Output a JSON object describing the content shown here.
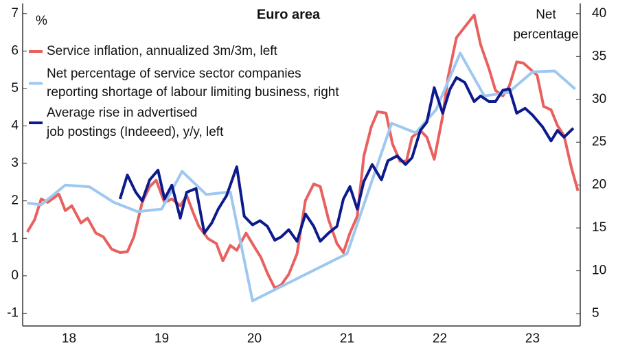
{
  "chart_data": {
    "type": "line",
    "title": "Euro area",
    "ylabel": "%",
    "y2label": [
      "Net",
      "percentage"
    ],
    "xlim": [
      18,
      24
    ],
    "xticks": [
      {
        "value": 18.5,
        "label": "18"
      },
      {
        "value": 19.5,
        "label": "19"
      },
      {
        "value": 20.5,
        "label": "20"
      },
      {
        "value": 21.5,
        "label": "21"
      },
      {
        "value": 22.5,
        "label": "22"
      },
      {
        "value": 23.5,
        "label": "23"
      }
    ],
    "ylim": [
      -1.34,
      7.27
    ],
    "yticks": [
      -1,
      0,
      1,
      2,
      3,
      4,
      5,
      6,
      7
    ],
    "y2lim": [
      3.56,
      41.19
    ],
    "y2ticks": [
      5,
      10,
      15,
      20,
      25,
      30,
      35,
      40
    ],
    "grid": false,
    "series": [
      {
        "name": "Service inflation, annualized 3m/3m, left",
        "color": "#e8615f",
        "axis": "y",
        "x": [
          18.05,
          18.13,
          18.2,
          18.27,
          18.39,
          18.46,
          18.53,
          18.63,
          18.7,
          18.79,
          18.87,
          18.96,
          19.05,
          19.13,
          19.2,
          19.29,
          19.37,
          19.44,
          19.53,
          19.61,
          19.7,
          19.77,
          19.84,
          19.9,
          20.0,
          20.09,
          20.16,
          20.24,
          20.31,
          20.41,
          20.5,
          20.57,
          20.64,
          20.72,
          20.79,
          20.87,
          20.96,
          21.05,
          21.14,
          21.21,
          21.3,
          21.39,
          21.46,
          21.53,
          21.61,
          21.68,
          21.76,
          21.83,
          21.92,
          21.99,
          22.07,
          22.14,
          22.2,
          22.29,
          22.36,
          22.44,
          22.53,
          22.59,
          22.68,
          22.87,
          22.94,
          23.03,
          23.1,
          23.18,
          23.25,
          23.33,
          23.4,
          23.47,
          23.55,
          23.62,
          23.7,
          23.77,
          23.84,
          23.92,
          23.99
        ],
        "values": [
          1.17,
          1.5,
          2.05,
          1.96,
          2.18,
          1.74,
          1.87,
          1.41,
          1.54,
          1.14,
          1.04,
          0.71,
          0.62,
          0.64,
          1.04,
          1.96,
          2.38,
          2.55,
          1.96,
          2.05,
          1.87,
          2.14,
          1.68,
          1.32,
          0.99,
          0.86,
          0.4,
          0.81,
          0.68,
          1.14,
          0.77,
          0.49,
          0.07,
          -0.33,
          -0.24,
          0.04,
          0.59,
          2.01,
          2.45,
          2.38,
          1.5,
          0.86,
          0.62,
          1.14,
          1.59,
          3.19,
          3.97,
          4.38,
          4.34,
          3.52,
          3.06,
          3.06,
          3.7,
          3.88,
          3.7,
          3.11,
          4.25,
          5.31,
          6.36,
          6.96,
          6.17,
          5.53,
          4.95,
          4.8,
          5.07,
          5.71,
          5.68,
          5.53,
          5.35,
          4.52,
          4.43,
          4.01,
          3.74,
          2.88,
          2.27
        ]
      },
      {
        "name": "Net percentage of service sector companies reporting shortage of labour limiting business, right",
        "color": "#9ec8f0",
        "axis": "y2",
        "x": [
          18.05,
          18.2,
          18.46,
          18.72,
          18.98,
          19.24,
          19.5,
          19.72,
          19.98,
          20.24,
          20.48,
          21.5,
          21.98,
          22.24,
          22.46,
          22.72,
          22.98,
          23.24,
          23.5,
          23.74,
          23.96
        ],
        "values": [
          17.9,
          17.7,
          20.0,
          19.8,
          18.0,
          16.9,
          17.2,
          21.6,
          18.9,
          19.2,
          6.5,
          12.0,
          27.2,
          26.1,
          28.8,
          35.4,
          30.4,
          30.8,
          33.2,
          33.3,
          31.2
        ]
      },
      {
        "name": "Average rise in advertised job postings (Indeeed), y/y, left",
        "color": "#0d1a8c",
        "axis": "y",
        "x": [
          19.05,
          19.13,
          19.22,
          19.29,
          19.37,
          19.46,
          19.53,
          19.61,
          19.7,
          19.77,
          19.87,
          19.96,
          20.04,
          20.11,
          20.2,
          20.31,
          20.39,
          20.48,
          20.56,
          20.64,
          20.72,
          20.79,
          20.87,
          20.96,
          21.05,
          21.14,
          21.21,
          21.3,
          21.39,
          21.46,
          21.53,
          21.61,
          21.68,
          21.77,
          21.87,
          21.94,
          22.04,
          22.13,
          22.2,
          22.29,
          22.36,
          22.44,
          22.53,
          22.61,
          22.68,
          22.77,
          22.87,
          22.94,
          23.03,
          23.1,
          23.18,
          23.25,
          23.33,
          23.42,
          23.5,
          23.61,
          23.7,
          23.77,
          23.84,
          23.94
        ],
        "values": [
          2.05,
          2.69,
          2.23,
          2.0,
          2.56,
          2.82,
          2.05,
          2.42,
          1.54,
          2.23,
          2.33,
          1.14,
          1.41,
          1.78,
          2.14,
          2.91,
          1.59,
          1.36,
          1.47,
          1.32,
          0.95,
          1.04,
          1.23,
          0.92,
          1.65,
          1.32,
          0.92,
          1.14,
          1.32,
          2.05,
          2.38,
          1.78,
          2.51,
          2.97,
          2.56,
          3.07,
          3.2,
          2.97,
          3.15,
          3.88,
          4.1,
          5.02,
          4.34,
          4.98,
          5.29,
          5.16,
          4.65,
          4.8,
          4.65,
          4.65,
          4.95,
          4.99,
          4.34,
          4.47,
          4.29,
          3.97,
          3.6,
          3.88,
          3.7,
          3.94
        ]
      }
    ]
  }
}
